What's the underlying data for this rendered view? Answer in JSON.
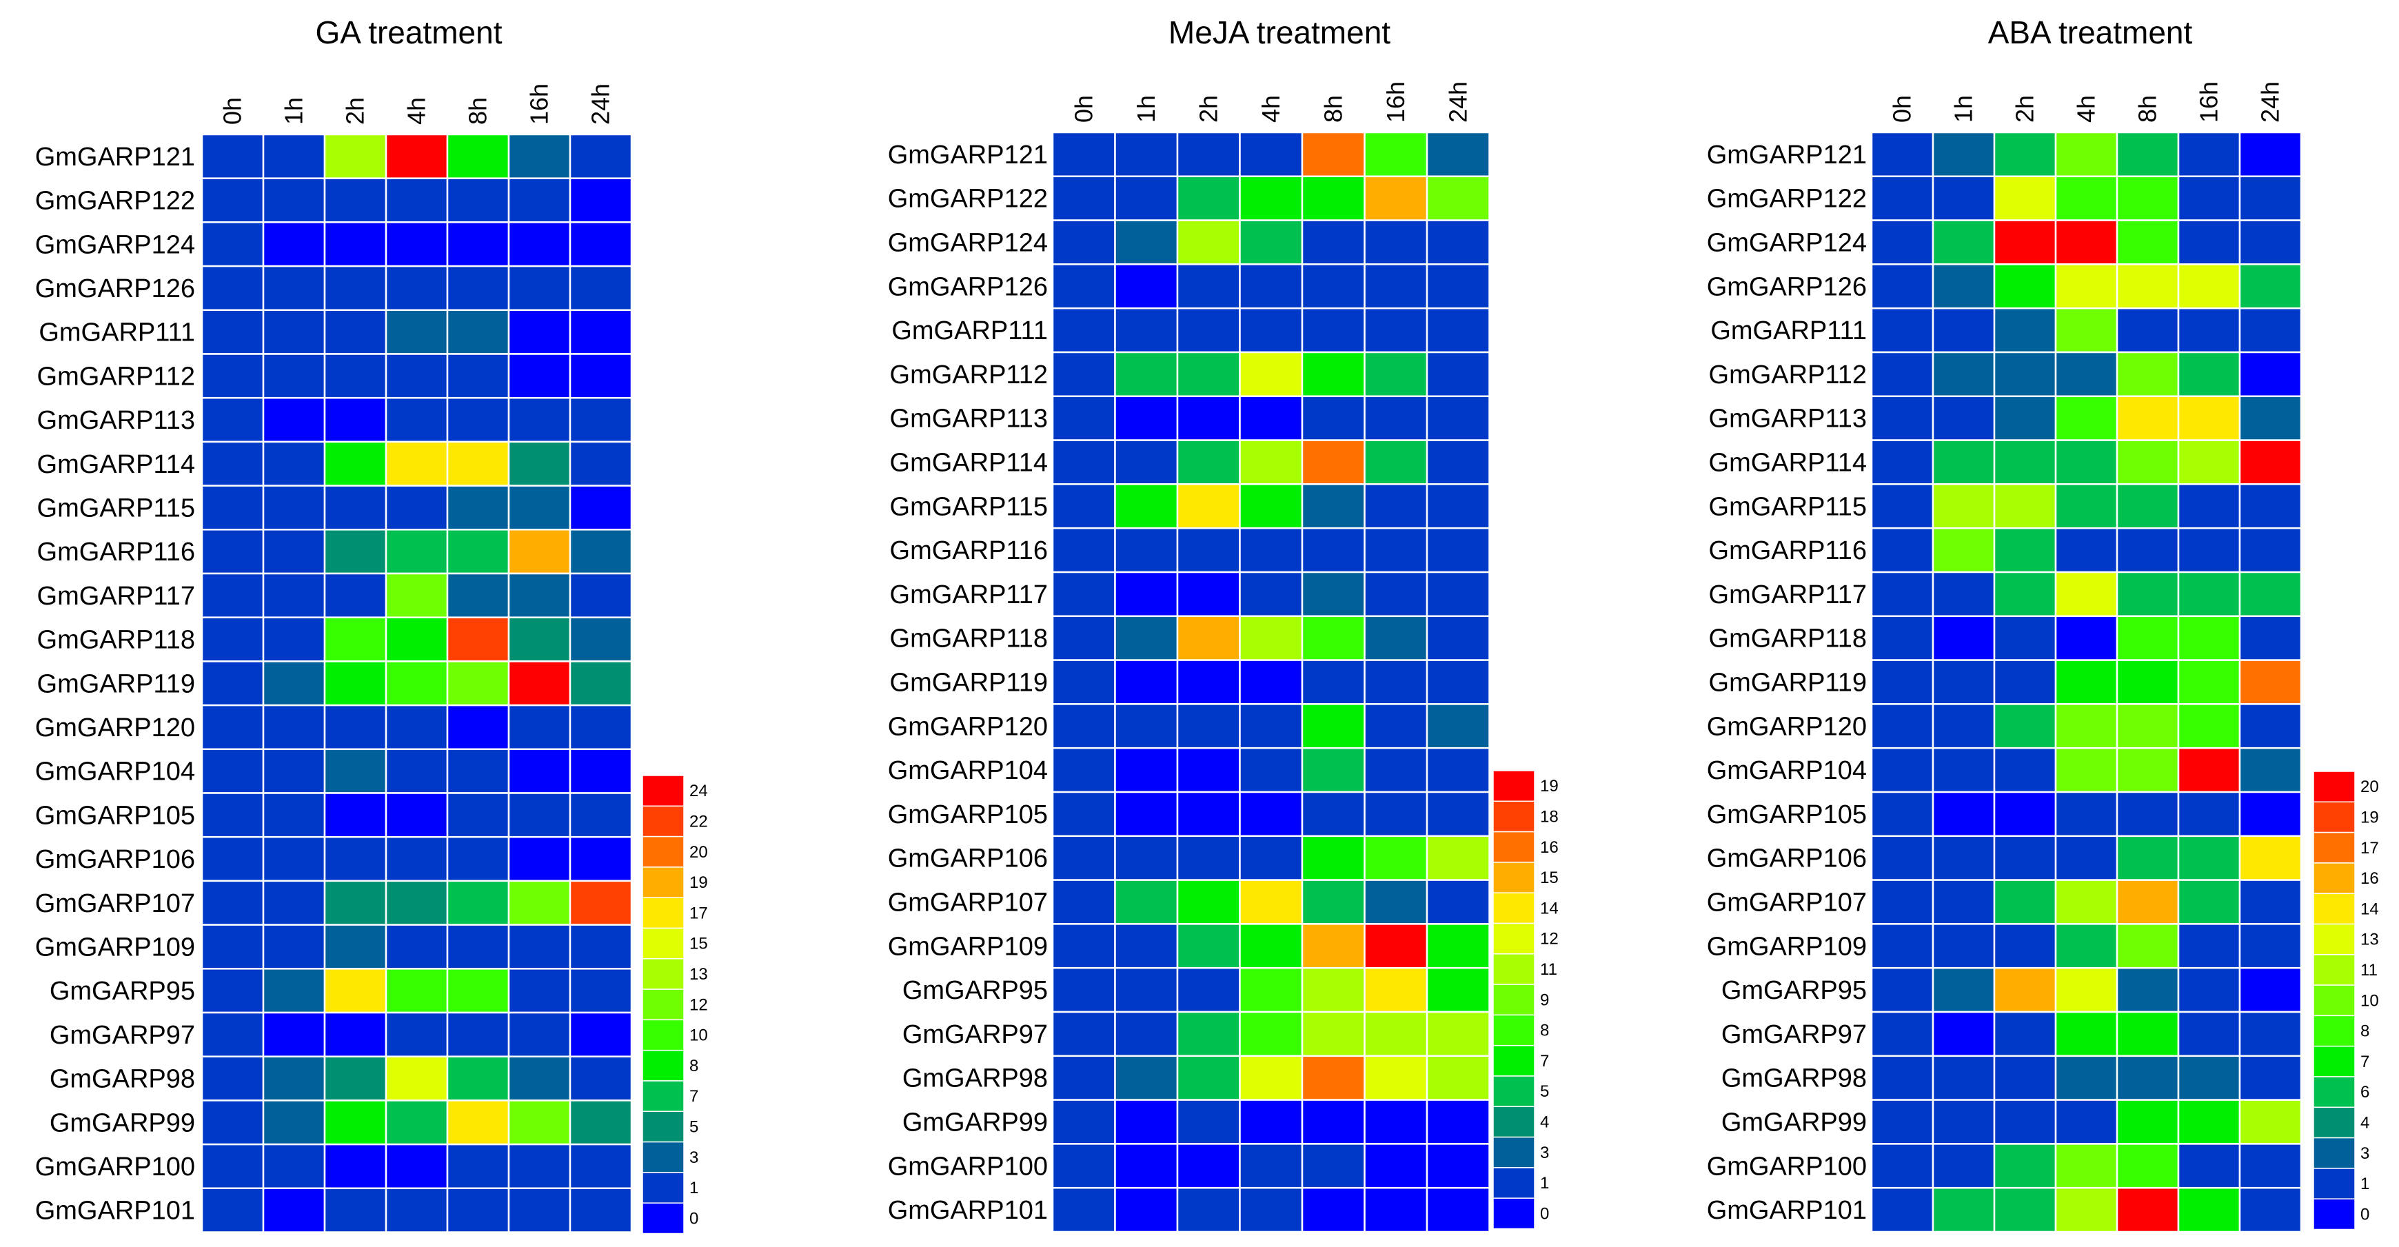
{
  "chart_data": [
    {
      "type": "heatmap",
      "title": "GA treatment",
      "columns": [
        "0h",
        "1h",
        "2h",
        "4h",
        "8h",
        "16h",
        "24h"
      ],
      "rows": [
        "GmGARP121",
        "GmGARP122",
        "GmGARP124",
        "GmGARP126",
        "GmGARP111",
        "GmGARP112",
        "GmGARP113",
        "GmGARP114",
        "GmGARP115",
        "GmGARP116",
        "GmGARP117",
        "GmGARP118",
        "GmGARP119",
        "GmGARP120",
        "GmGARP104",
        "GmGARP105",
        "GmGARP106",
        "GmGARP107",
        "GmGARP109",
        "GmGARP95",
        "GmGARP97",
        "GmGARP98",
        "GmGARP99",
        "GmGARP100",
        "GmGARP101"
      ],
      "legend_ticks": [
        24,
        22,
        20,
        19,
        17,
        15,
        13,
        12,
        10,
        8,
        7,
        5,
        3,
        1,
        0
      ],
      "legend_colors": [
        "#ff0000",
        "#ff4000",
        "#ff7000",
        "#ffae00",
        "#ffe800",
        "#e0ff00",
        "#a8ff00",
        "#70ff00",
        "#38ff00",
        "#00ef00",
        "#00c050",
        "#008f70",
        "#00609a",
        "#0038c8",
        "#0000ff"
      ],
      "values": [
        [
          1,
          1,
          13,
          24,
          8,
          3,
          1
        ],
        [
          1,
          1,
          1,
          1,
          1,
          1,
          0
        ],
        [
          1,
          0,
          0,
          0,
          0,
          0,
          0
        ],
        [
          1,
          1,
          1,
          1,
          1,
          1,
          1
        ],
        [
          1,
          1,
          1,
          3,
          3,
          0,
          0
        ],
        [
          1,
          1,
          1,
          1,
          1,
          0,
          0
        ],
        [
          1,
          0,
          0,
          1,
          1,
          1,
          1
        ],
        [
          1,
          1,
          8,
          16,
          16,
          5,
          1
        ],
        [
          1,
          1,
          1,
          1,
          3,
          3,
          0
        ],
        [
          1,
          1,
          5,
          7,
          7,
          18,
          3
        ],
        [
          1,
          1,
          1,
          12,
          3,
          3,
          1
        ],
        [
          1,
          1,
          10,
          8,
          21,
          5,
          3
        ],
        [
          1,
          3,
          8,
          10,
          11,
          24,
          5
        ],
        [
          1,
          1,
          1,
          1,
          0,
          1,
          1
        ],
        [
          1,
          1,
          3,
          1,
          1,
          0,
          0
        ],
        [
          1,
          1,
          0,
          0,
          1,
          1,
          1
        ],
        [
          1,
          1,
          1,
          1,
          1,
          0,
          0
        ],
        [
          1,
          1,
          5,
          5,
          7,
          11,
          21
        ],
        [
          1,
          1,
          3,
          1,
          1,
          1,
          1
        ],
        [
          1,
          3,
          16,
          9,
          9,
          1,
          1
        ],
        [
          1,
          0,
          0,
          1,
          1,
          1,
          0
        ],
        [
          1,
          3,
          5,
          14,
          7,
          3,
          1
        ],
        [
          1,
          3,
          8,
          7,
          16,
          12,
          5
        ],
        [
          1,
          1,
          0,
          0,
          1,
          1,
          1
        ],
        [
          1,
          0,
          1,
          1,
          1,
          1,
          1
        ]
      ]
    },
    {
      "type": "heatmap",
      "title": "MeJA treatment",
      "columns": [
        "0h",
        "1h",
        "2h",
        "4h",
        "8h",
        "16h",
        "24h"
      ],
      "rows": [
        "GmGARP121",
        "GmGARP122",
        "GmGARP124",
        "GmGARP126",
        "GmGARP111",
        "GmGARP112",
        "GmGARP113",
        "GmGARP114",
        "GmGARP115",
        "GmGARP116",
        "GmGARP117",
        "GmGARP118",
        "GmGARP119",
        "GmGARP120",
        "GmGARP104",
        "GmGARP105",
        "GmGARP106",
        "GmGARP107",
        "GmGARP109",
        "GmGARP95",
        "GmGARP97",
        "GmGARP98",
        "GmGARP99",
        "GmGARP100",
        "GmGARP101"
      ],
      "legend_ticks": [
        19,
        18,
        16,
        15,
        14,
        12,
        11,
        9,
        8,
        7,
        5,
        4,
        3,
        1,
        0
      ],
      "legend_colors": [
        "#ff0000",
        "#ff4000",
        "#ff7000",
        "#ffae00",
        "#ffe800",
        "#e0ff00",
        "#a8ff00",
        "#70ff00",
        "#38ff00",
        "#00ef00",
        "#00c050",
        "#008f70",
        "#00609a",
        "#0038c8",
        "#0000ff"
      ],
      "values": [
        [
          1,
          1,
          1,
          1,
          16,
          8,
          3
        ],
        [
          1,
          1,
          5,
          7,
          7,
          15,
          9
        ],
        [
          1,
          3,
          10,
          5,
          1,
          1,
          1
        ],
        [
          1,
          0,
          1,
          1,
          1,
          1,
          1
        ],
        [
          1,
          1,
          1,
          1,
          1,
          1,
          1
        ],
        [
          1,
          5,
          5,
          12,
          7,
          5,
          1
        ],
        [
          1,
          0,
          0,
          0,
          1,
          1,
          1
        ],
        [
          1,
          1,
          5,
          10,
          16,
          5,
          1
        ],
        [
          1,
          7,
          14,
          7,
          3,
          1,
          1
        ],
        [
          1,
          1,
          1,
          1,
          1,
          1,
          1
        ],
        [
          1,
          0,
          0,
          1,
          3,
          1,
          1
        ],
        [
          1,
          3,
          15,
          10,
          8,
          3,
          1
        ],
        [
          1,
          0,
          0,
          0,
          1,
          1,
          1
        ],
        [
          1,
          1,
          1,
          1,
          7,
          1,
          3
        ],
        [
          1,
          0,
          0,
          1,
          5,
          1,
          1
        ],
        [
          1,
          0,
          0,
          0,
          1,
          1,
          1
        ],
        [
          1,
          1,
          1,
          1,
          7,
          8,
          10
        ],
        [
          1,
          5,
          7,
          13,
          5,
          3,
          1
        ],
        [
          1,
          1,
          5,
          7,
          15,
          19,
          7
        ],
        [
          1,
          1,
          1,
          8,
          10,
          13,
          7
        ],
        [
          1,
          1,
          5,
          8,
          10,
          11,
          10
        ],
        [
          1,
          3,
          5,
          12,
          16,
          12,
          10
        ],
        [
          1,
          0,
          1,
          0,
          0,
          0,
          0
        ],
        [
          1,
          0,
          0,
          1,
          1,
          0,
          0
        ],
        [
          1,
          0,
          1,
          1,
          0,
          0,
          0
        ]
      ]
    },
    {
      "type": "heatmap",
      "title": "ABA treatment",
      "columns": [
        "0h",
        "1h",
        "2h",
        "4h",
        "8h",
        "16h",
        "24h"
      ],
      "rows": [
        "GmGARP121",
        "GmGARP122",
        "GmGARP124",
        "GmGARP126",
        "GmGARP111",
        "GmGARP112",
        "GmGARP113",
        "GmGARP114",
        "GmGARP115",
        "GmGARP116",
        "GmGARP117",
        "GmGARP118",
        "GmGARP119",
        "GmGARP120",
        "GmGARP104",
        "GmGARP105",
        "GmGARP106",
        "GmGARP107",
        "GmGARP109",
        "GmGARP95",
        "GmGARP97",
        "GmGARP98",
        "GmGARP99",
        "GmGARP100",
        "GmGARP101"
      ],
      "legend_ticks": [
        20,
        19,
        17,
        16,
        14,
        13,
        11,
        10,
        8,
        7,
        6,
        4,
        3,
        1,
        0
      ],
      "legend_colors": [
        "#ff0000",
        "#ff4000",
        "#ff7000",
        "#ffae00",
        "#ffe800",
        "#e0ff00",
        "#a8ff00",
        "#70ff00",
        "#38ff00",
        "#00ef00",
        "#00c050",
        "#008f70",
        "#00609a",
        "#0038c8",
        "#0000ff"
      ],
      "values": [
        [
          1,
          3,
          5,
          9,
          5,
          1,
          0
        ],
        [
          1,
          1,
          13,
          8,
          8,
          1,
          1
        ],
        [
          1,
          5,
          20,
          20,
          8,
          1,
          1
        ],
        [
          1,
          3,
          7,
          12,
          12,
          12,
          5
        ],
        [
          1,
          1,
          3,
          9,
          1,
          1,
          1
        ],
        [
          1,
          3,
          3,
          3,
          10,
          5,
          0
        ],
        [
          1,
          1,
          3,
          8,
          14,
          14,
          3
        ],
        [
          1,
          5,
          5,
          5,
          9,
          11,
          20
        ],
        [
          1,
          11,
          11,
          5,
          5,
          1,
          1
        ],
        [
          1,
          9,
          5,
          1,
          1,
          1,
          1
        ],
        [
          1,
          1,
          5,
          13,
          5,
          5,
          5
        ],
        [
          1,
          0,
          1,
          0,
          8,
          8,
          1
        ],
        [
          1,
          1,
          1,
          7,
          7,
          8,
          17
        ],
        [
          1,
          1,
          5,
          10,
          10,
          8,
          1
        ],
        [
          1,
          1,
          1,
          9,
          9,
          20,
          3
        ],
        [
          1,
          0,
          0,
          1,
          1,
          1,
          0
        ],
        [
          1,
          1,
          1,
          1,
          5,
          5,
          14
        ],
        [
          1,
          1,
          5,
          11,
          16,
          5,
          1
        ],
        [
          1,
          1,
          1,
          5,
          9,
          1,
          1
        ],
        [
          1,
          3,
          16,
          13,
          3,
          1,
          0
        ],
        [
          1,
          0,
          1,
          7,
          7,
          1,
          1
        ],
        [
          1,
          1,
          1,
          3,
          3,
          3,
          1
        ],
        [
          1,
          1,
          1,
          1,
          7,
          7,
          11
        ],
        [
          1,
          1,
          5,
          9,
          8,
          1,
          1
        ],
        [
          1,
          5,
          5,
          11,
          20,
          7,
          1
        ]
      ]
    }
  ]
}
